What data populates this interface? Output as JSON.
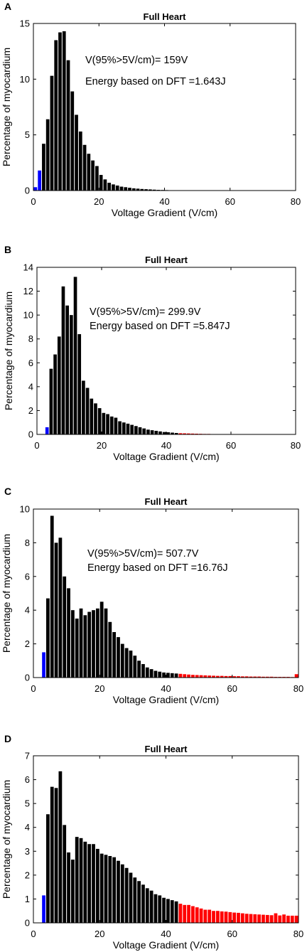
{
  "colors": {
    "normal": "#000000",
    "low": "#0000ff",
    "high": "#ff0000"
  },
  "chart_data": [
    {
      "panel": "A",
      "type": "bar",
      "title": "Full Heart",
      "xlabel": "Voltage Gradient (V/cm)",
      "ylabel": "Percentage of myocardium",
      "xlim": [
        0,
        80
      ],
      "ylim": [
        0,
        15
      ],
      "xticks": [
        0,
        20,
        40,
        60,
        80
      ],
      "yticks": [
        0,
        5,
        10,
        15
      ],
      "annotations": [
        "V(95%>5V/cm)=   159V",
        "Energy based on DFT =1.643J"
      ],
      "bin_width": 1.25,
      "x": [
        1.25,
        2.5,
        3.75,
        5,
        6.25,
        7.5,
        8.75,
        10,
        11.25,
        12.5,
        13.75,
        15,
        16.25,
        17.5,
        18.75,
        20,
        21.25,
        22.5,
        23.75,
        25,
        26.25,
        27.5,
        28.75,
        30,
        31.25,
        32.5,
        33.75,
        35,
        36.25,
        37.5,
        38.75,
        40,
        41.25,
        42.5,
        43.75
      ],
      "values": [
        0.3,
        1.8,
        4.2,
        6.4,
        10.3,
        13.5,
        14.2,
        14.3,
        11.7,
        8.9,
        6.8,
        5.3,
        4.1,
        3.3,
        2.7,
        2.2,
        1.4,
        1.0,
        0.7,
        0.55,
        0.45,
        0.35,
        0.3,
        0.25,
        0.2,
        0.17,
        0.14,
        0.12,
        0.1,
        0.08,
        0.06,
        0.05,
        0.04,
        0.03,
        0.02
      ],
      "colors": [
        "low",
        "low",
        "normal",
        "normal",
        "normal",
        "normal",
        "normal",
        "normal",
        "normal",
        "normal",
        "normal",
        "normal",
        "normal",
        "normal",
        "normal",
        "normal",
        "normal",
        "normal",
        "normal",
        "normal",
        "normal",
        "normal",
        "normal",
        "normal",
        "normal",
        "normal",
        "normal",
        "normal",
        "normal",
        "normal",
        "normal",
        "normal",
        "normal",
        "normal",
        "normal"
      ]
    },
    {
      "panel": "B",
      "type": "bar",
      "title": "Full Heart",
      "xlabel": "Voltage Gradient (V/cm)",
      "ylabel": "Percentage of myocardium",
      "xlim": [
        0,
        80
      ],
      "ylim": [
        0,
        14
      ],
      "xticks": [
        0,
        20,
        40,
        60,
        80
      ],
      "yticks": [
        0,
        2,
        4,
        6,
        8,
        10,
        12,
        14
      ],
      "annotations": [
        "V(95%>5V/cm)= 299.9V",
        "Energy based on DFT =5.847J"
      ],
      "bin_width": 1.25,
      "x": [
        3.75,
        5,
        6.25,
        7.5,
        8.75,
        10,
        11.25,
        12.5,
        13.75,
        15,
        16.25,
        17.5,
        18.75,
        20,
        21.25,
        22.5,
        23.75,
        25,
        26.25,
        27.5,
        28.75,
        30,
        31.25,
        32.5,
        33.75,
        35,
        36.25,
        37.5,
        38.75,
        40,
        41.25,
        42.5,
        43.75,
        45,
        46.25,
        47.5,
        48.75,
        50,
        51.25,
        52.5,
        53.75,
        55,
        56.25,
        57.5
      ],
      "values": [
        0.6,
        5.5,
        6.7,
        8.2,
        12.4,
        10.8,
        10.0,
        13.2,
        8.4,
        4.5,
        3.9,
        3.0,
        2.6,
        2.2,
        1.8,
        1.7,
        1.5,
        1.4,
        1.1,
        1.0,
        0.9,
        0.8,
        0.7,
        0.6,
        0.5,
        0.4,
        0.35,
        0.3,
        0.25,
        0.2,
        0.18,
        0.15,
        0.12,
        0.1,
        0.09,
        0.08,
        0.07,
        0.06,
        0.05,
        0.04,
        0.04,
        0.03,
        0.03,
        0.02
      ],
      "colors": [
        "low",
        "normal",
        "normal",
        "normal",
        "normal",
        "normal",
        "normal",
        "normal",
        "normal",
        "normal",
        "normal",
        "normal",
        "normal",
        "normal",
        "normal",
        "normal",
        "normal",
        "normal",
        "normal",
        "normal",
        "normal",
        "normal",
        "normal",
        "normal",
        "normal",
        "normal",
        "normal",
        "normal",
        "normal",
        "normal",
        "normal",
        "normal",
        "normal",
        "high",
        "high",
        "high",
        "high",
        "high",
        "high",
        "high",
        "high",
        "high",
        "high",
        "high"
      ]
    },
    {
      "panel": "C",
      "type": "bar",
      "title": "Full Heart",
      "xlabel": "Voltage Gradient (V/cm)",
      "ylabel": "Percentage of myocardium",
      "xlim": [
        0,
        80
      ],
      "ylim": [
        0,
        10
      ],
      "xticks": [
        0,
        20,
        40,
        60,
        80
      ],
      "yticks": [
        0,
        2,
        4,
        6,
        8,
        10
      ],
      "annotations": [
        "V(95%>5V/cm)= 507.7V",
        "Energy based on DFT =16.76J"
      ],
      "bin_width": 1.25,
      "x": [
        3.75,
        5,
        6.25,
        7.5,
        8.75,
        10,
        11.25,
        12.5,
        13.75,
        15,
        16.25,
        17.5,
        18.75,
        20,
        21.25,
        22.5,
        23.75,
        25,
        26.25,
        27.5,
        28.75,
        30,
        31.25,
        32.5,
        33.75,
        35,
        36.25,
        37.5,
        38.75,
        40,
        41.25,
        42.5,
        43.75,
        45,
        46.25,
        47.5,
        48.75,
        50,
        51.25,
        52.5,
        53.75,
        55,
        56.25,
        57.5,
        58.75,
        60,
        61.25,
        62.5,
        63.75,
        65,
        66.25,
        67.5,
        68.75,
        70,
        71.25,
        72.5,
        73.75,
        75,
        76.25,
        77.5,
        78.75,
        80
      ],
      "values": [
        1.5,
        4.7,
        9.6,
        8.0,
        8.3,
        6.0,
        5.3,
        4.0,
        3.5,
        4.1,
        3.7,
        3.9,
        4.0,
        4.1,
        4.5,
        4.1,
        3.3,
        2.7,
        2.4,
        2.0,
        1.75,
        1.6,
        1.3,
        1.0,
        0.8,
        0.6,
        0.5,
        0.4,
        0.35,
        0.3,
        0.28,
        0.26,
        0.24,
        0.22,
        0.2,
        0.18,
        0.16,
        0.15,
        0.14,
        0.13,
        0.12,
        0.11,
        0.1,
        0.1,
        0.09,
        0.09,
        0.08,
        0.08,
        0.07,
        0.07,
        0.06,
        0.06,
        0.06,
        0.05,
        0.05,
        0.05,
        0.04,
        0.04,
        0.04,
        0.04,
        0.03,
        0.2
      ],
      "colors": [
        "low",
        "normal",
        "normal",
        "normal",
        "normal",
        "normal",
        "normal",
        "normal",
        "normal",
        "normal",
        "normal",
        "normal",
        "normal",
        "normal",
        "normal",
        "normal",
        "normal",
        "normal",
        "normal",
        "normal",
        "normal",
        "normal",
        "normal",
        "normal",
        "normal",
        "normal",
        "normal",
        "normal",
        "normal",
        "normal",
        "normal",
        "normal",
        "normal",
        "high",
        "high",
        "high",
        "high",
        "high",
        "high",
        "high",
        "high",
        "high",
        "high",
        "high",
        "high",
        "high",
        "high",
        "high",
        "high",
        "high",
        "high",
        "high",
        "high",
        "high",
        "high",
        "high",
        "high",
        "high",
        "high",
        "high",
        "high",
        "high"
      ]
    },
    {
      "panel": "D",
      "type": "bar",
      "title": "Full Heart",
      "xlabel": "Voltage Gradient (V/cm)",
      "ylabel": "Percentage of myocardium",
      "xlim": [
        0,
        80
      ],
      "ylim": [
        0,
        7
      ],
      "xticks": [
        0,
        20,
        40,
        60,
        80
      ],
      "yticks": [
        0,
        1,
        2,
        3,
        4,
        5,
        6,
        7
      ],
      "annotations": [],
      "bin_width": 1.25,
      "x": [
        3.75,
        5,
        6.25,
        7.5,
        8.75,
        10,
        11.25,
        12.5,
        13.75,
        15,
        16.25,
        17.5,
        18.75,
        20,
        21.25,
        22.5,
        23.75,
        25,
        26.25,
        27.5,
        28.75,
        30,
        31.25,
        32.5,
        33.75,
        35,
        36.25,
        37.5,
        38.75,
        40,
        41.25,
        42.5,
        43.75,
        45,
        46.25,
        47.5,
        48.75,
        50,
        51.25,
        52.5,
        53.75,
        55,
        56.25,
        57.5,
        58.75,
        60,
        61.25,
        62.5,
        63.75,
        65,
        66.25,
        67.5,
        68.75,
        70,
        71.25,
        72.5,
        73.75,
        75,
        76.25,
        77.5,
        78.75,
        80
      ],
      "values": [
        1.15,
        4.55,
        5.7,
        5.65,
        6.35,
        4.1,
        2.95,
        2.65,
        3.6,
        3.55,
        3.4,
        3.3,
        3.3,
        3.1,
        2.9,
        2.85,
        2.8,
        2.75,
        2.6,
        2.45,
        2.3,
        2.1,
        1.9,
        1.75,
        1.6,
        1.45,
        1.35,
        1.2,
        1.15,
        1.05,
        1.0,
        0.95,
        0.9,
        0.8,
        0.75,
        0.75,
        0.7,
        0.65,
        0.6,
        0.55,
        0.55,
        0.5,
        0.5,
        0.48,
        0.47,
        0.45,
        0.43,
        0.42,
        0.4,
        0.38,
        0.37,
        0.36,
        0.35,
        0.34,
        0.33,
        0.32,
        0.4,
        0.31,
        0.35,
        0.3,
        0.3,
        0.3
      ],
      "colors": [
        "low",
        "normal",
        "normal",
        "normal",
        "normal",
        "normal",
        "normal",
        "normal",
        "normal",
        "normal",
        "normal",
        "normal",
        "normal",
        "normal",
        "normal",
        "normal",
        "normal",
        "normal",
        "normal",
        "normal",
        "normal",
        "normal",
        "normal",
        "normal",
        "normal",
        "normal",
        "normal",
        "normal",
        "normal",
        "normal",
        "normal",
        "normal",
        "normal",
        "high",
        "high",
        "high",
        "high",
        "high",
        "high",
        "high",
        "high",
        "high",
        "high",
        "high",
        "high",
        "high",
        "high",
        "high",
        "high",
        "high",
        "high",
        "high",
        "high",
        "high",
        "high",
        "high",
        "high",
        "high",
        "high",
        "high",
        "high",
        "high"
      ]
    }
  ]
}
